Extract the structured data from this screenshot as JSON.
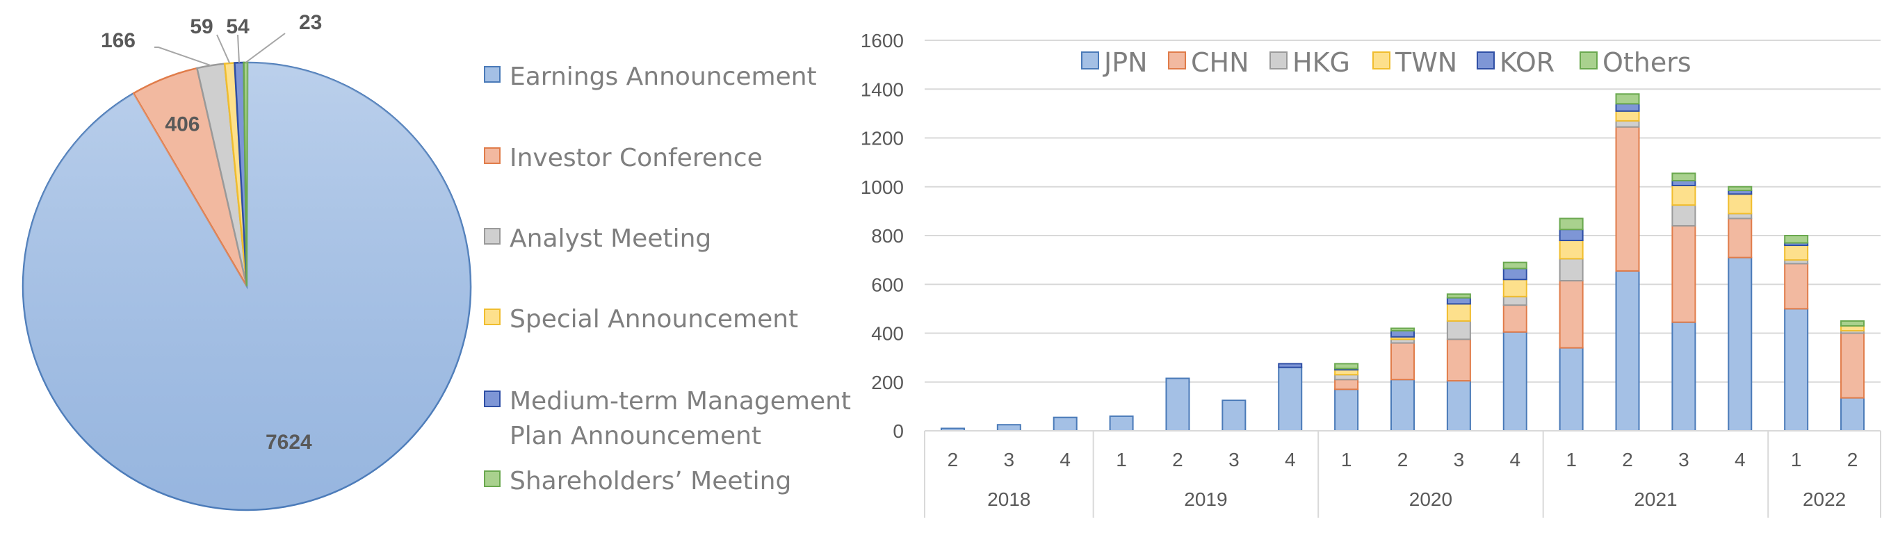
{
  "chart_data": [
    {
      "type": "pie",
      "title": "",
      "slices": [
        {
          "label": "Earnings Announcement",
          "value": 7624,
          "color": "#a4c0e5",
          "stroke": "#4a7ab8"
        },
        {
          "label": "Investor Conference",
          "value": 406,
          "color": "#f2b9a0",
          "stroke": "#e07c4a"
        },
        {
          "label": "Analyst Meeting",
          "value": 166,
          "color": "#cfcfcf",
          "stroke": "#9a9a9a"
        },
        {
          "label": "Special Announcement",
          "value": 59,
          "color": "#fde08c",
          "stroke": "#f0bd2e"
        },
        {
          "label": "Medium-term Management Plan Announcement",
          "value": 54,
          "color": "#7e96d6",
          "stroke": "#2f4fa5"
        },
        {
          "label": "Shareholders’ Meeting",
          "value": 23,
          "color": "#a9d18e",
          "stroke": "#6aa84f"
        }
      ],
      "legend_lines": [
        [
          "Earnings Announcement"
        ],
        [
          "Investor Conference"
        ],
        [
          "Analyst Meeting"
        ],
        [
          "Special Announcement"
        ],
        [
          "Medium-term Management",
          "Plan Announcement"
        ],
        [
          "Shareholders’ Meeting"
        ]
      ],
      "legend": "right"
    },
    {
      "type": "bar",
      "stacked": true,
      "title": "",
      "xlabel": "",
      "ylabel": "",
      "ylim": [
        0,
        1600
      ],
      "yticks": [
        0,
        200,
        400,
        600,
        800,
        1000,
        1200,
        1400,
        1600
      ],
      "grid": true,
      "legend": "top",
      "categories": [
        "2",
        "3",
        "4",
        "1",
        "2",
        "3",
        "4",
        "1",
        "2",
        "3",
        "4",
        "1",
        "2",
        "3",
        "4",
        "1",
        "2"
      ],
      "years": [
        {
          "label": "2018",
          "count": 3
        },
        {
          "label": "2019",
          "count": 4
        },
        {
          "label": "2020",
          "count": 4
        },
        {
          "label": "2021",
          "count": 4
        },
        {
          "label": "2022",
          "count": 2
        }
      ],
      "series": [
        {
          "name": "JPN",
          "color": "#a4c0e5",
          "stroke": "#4a7ab8",
          "values": [
            10,
            25,
            55,
            60,
            215,
            125,
            260,
            170,
            210,
            205,
            405,
            340,
            655,
            445,
            710,
            500,
            135
          ]
        },
        {
          "name": "CHN",
          "color": "#f2b9a0",
          "stroke": "#e07c4a",
          "values": [
            0,
            0,
            0,
            0,
            0,
            0,
            0,
            40,
            150,
            170,
            110,
            275,
            590,
            395,
            160,
            185,
            265
          ]
        },
        {
          "name": "HKG",
          "color": "#cfcfcf",
          "stroke": "#9a9a9a",
          "values": [
            0,
            0,
            0,
            0,
            0,
            0,
            0,
            20,
            15,
            75,
            35,
            90,
            25,
            85,
            20,
            15,
            10
          ]
        },
        {
          "name": "TWN",
          "color": "#fde08c",
          "stroke": "#f0bd2e",
          "values": [
            0,
            0,
            0,
            0,
            0,
            0,
            0,
            20,
            10,
            70,
            70,
            75,
            40,
            80,
            80,
            60,
            20
          ]
        },
        {
          "name": "KOR",
          "color": "#7e96d6",
          "stroke": "#2f4fa5",
          "values": [
            0,
            0,
            0,
            0,
            0,
            0,
            15,
            5,
            25,
            25,
            45,
            45,
            30,
            20,
            15,
            10,
            0
          ]
        },
        {
          "name": "Others",
          "color": "#a9d18e",
          "stroke": "#6aa84f",
          "values": [
            0,
            0,
            0,
            0,
            0,
            0,
            0,
            20,
            10,
            15,
            25,
            45,
            40,
            30,
            15,
            30,
            20
          ]
        }
      ]
    }
  ]
}
